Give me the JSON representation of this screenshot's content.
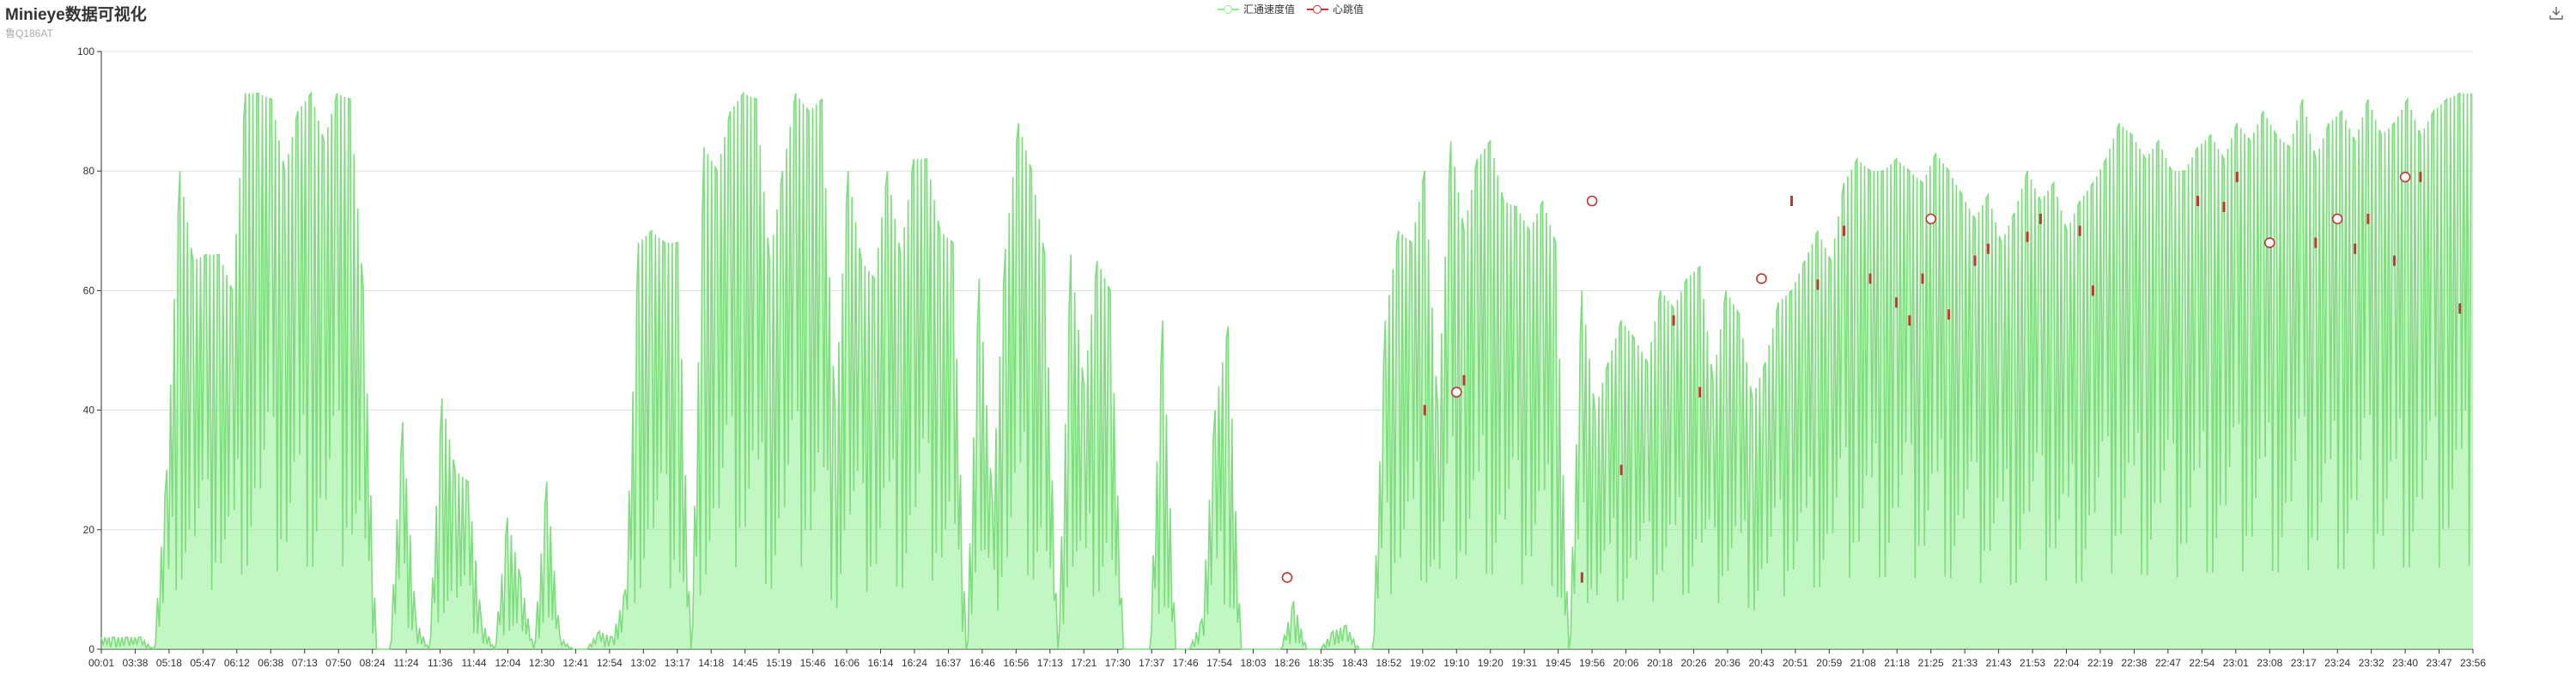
{
  "header": {
    "title": "Minieye数据可视化",
    "subtitle": "鲁Q186AT"
  },
  "toolbar": {
    "save_icon": "download-icon"
  },
  "colors": {
    "speed": "#90ee90",
    "speed_line": "#7fdc7f",
    "heartbeat": "#c23531",
    "grid": "#dddddd",
    "axis": "#333333"
  },
  "chart_data": {
    "type": "line",
    "grid": true,
    "legend_position": "top-center",
    "ylim": [
      0,
      100
    ],
    "yticks": [
      0,
      20,
      40,
      60,
      80,
      100
    ],
    "x_ticks": [
      "00:01",
      "03:38",
      "05:18",
      "05:47",
      "06:12",
      "06:38",
      "07:13",
      "07:50",
      "08:24",
      "11:24",
      "11:36",
      "11:44",
      "12:04",
      "12:30",
      "12:41",
      "12:54",
      "13:02",
      "13:17",
      "14:18",
      "14:45",
      "15:19",
      "15:46",
      "16:06",
      "16:14",
      "16:24",
      "16:37",
      "16:46",
      "16:56",
      "17:13",
      "17:21",
      "17:30",
      "17:37",
      "17:46",
      "17:54",
      "18:03",
      "18:26",
      "18:35",
      "18:43",
      "18:52",
      "19:02",
      "19:10",
      "19:20",
      "19:31",
      "19:45",
      "19:56",
      "20:06",
      "20:18",
      "20:26",
      "20:36",
      "20:43",
      "20:51",
      "20:59",
      "21:08",
      "21:18",
      "21:25",
      "21:33",
      "21:43",
      "21:53",
      "22:04",
      "22:19",
      "22:38",
      "22:47",
      "22:54",
      "23:01",
      "23:08",
      "23:17",
      "23:24",
      "23:32",
      "23:40",
      "23:47",
      "23:56"
    ],
    "series": [
      {
        "name": "汇通速度值",
        "values": [
          2,
          2,
          2,
          2,
          0,
          30,
          80,
          65,
          66,
          66,
          60,
          93,
          93,
          92,
          80,
          90,
          93,
          85,
          93,
          92,
          60,
          0,
          0,
          38,
          5,
          0,
          42,
          30,
          28,
          5,
          0,
          22,
          12,
          0,
          28,
          2,
          0,
          0,
          3,
          2,
          10,
          68,
          70,
          68,
          68,
          0,
          84,
          80,
          90,
          93,
          92,
          65,
          80,
          93,
          90,
          92,
          40,
          80,
          65,
          62,
          80,
          66,
          82,
          82,
          70,
          68,
          0,
          62,
          25,
          67,
          88,
          80,
          66,
          0,
          66,
          44,
          65,
          60,
          0,
          0,
          0,
          55,
          0,
          0,
          5,
          40,
          54,
          0,
          0,
          0,
          0,
          8,
          0,
          0,
          3,
          4,
          0,
          0,
          55,
          70,
          68,
          80,
          40,
          85,
          70,
          82,
          85,
          75,
          74,
          70,
          75,
          68,
          0,
          60,
          40,
          48,
          55,
          52,
          48,
          60,
          57,
          62,
          64,
          45,
          60,
          56,
          42,
          48,
          58,
          60,
          65,
          70,
          65,
          78,
          82,
          80,
          80,
          82,
          80,
          78,
          83,
          80,
          76,
          72,
          76,
          68,
          73,
          80,
          75,
          78,
          70,
          75,
          78,
          82,
          88,
          86,
          82,
          85,
          80,
          80,
          84,
          86,
          82,
          88,
          85,
          90,
          86,
          84,
          92,
          82,
          88,
          90,
          85,
          92,
          86,
          88,
          92,
          86,
          90,
          92,
          93,
          93
        ]
      },
      {
        "name": "心跳值",
        "values": [
          null,
          null,
          null,
          null,
          null,
          null,
          null,
          null,
          null,
          null,
          null,
          null,
          null,
          null,
          null,
          null,
          null,
          null,
          null,
          null,
          null,
          null,
          null,
          null,
          null,
          null,
          null,
          null,
          null,
          null,
          null,
          null,
          null,
          null,
          null,
          null,
          null,
          null,
          null,
          null,
          null,
          null,
          null,
          null,
          null,
          null,
          null,
          null,
          null,
          null,
          null,
          null,
          null,
          null,
          null,
          null,
          null,
          null,
          null,
          null,
          null,
          null,
          null,
          null,
          null,
          null,
          null,
          null,
          null,
          null,
          null,
          null,
          null,
          null,
          null,
          null,
          null,
          null,
          null,
          null,
          null,
          null,
          null,
          null,
          null,
          null,
          null,
          null,
          null,
          null,
          null,
          null,
          null,
          null,
          null,
          null,
          null,
          null,
          null,
          null,
          null,
          40,
          null,
          null,
          45,
          null,
          null,
          null,
          null,
          null,
          null,
          null,
          null,
          12,
          null,
          null,
          30,
          null,
          null,
          null,
          55,
          null,
          43,
          null,
          null,
          null,
          null,
          null,
          null,
          75,
          null,
          61,
          null,
          70,
          null,
          62,
          null,
          58,
          55,
          62,
          null,
          56,
          null,
          65,
          67,
          null,
          null,
          69,
          72,
          null,
          null,
          70,
          60,
          null,
          null,
          null,
          null,
          null,
          null,
          null,
          75,
          null,
          74,
          79,
          null,
          null,
          null,
          null,
          null,
          68,
          null,
          null,
          67,
          72,
          null,
          65,
          null,
          79,
          null,
          null,
          57
        ]
      }
    ],
    "heartbeat_circles": [
      {
        "x_tick": "18:26",
        "value": 12
      },
      {
        "x_tick": "19:10",
        "value": 43
      },
      {
        "x_tick": "19:56",
        "value": 75
      },
      {
        "x_tick": "20:43",
        "value": 62
      },
      {
        "x_tick": "21:25",
        "value": 72
      },
      {
        "x_tick": "23:08",
        "value": 68
      },
      {
        "x_tick": "23:24",
        "value": 72
      },
      {
        "x_tick": "23:40",
        "value": 79
      }
    ]
  }
}
